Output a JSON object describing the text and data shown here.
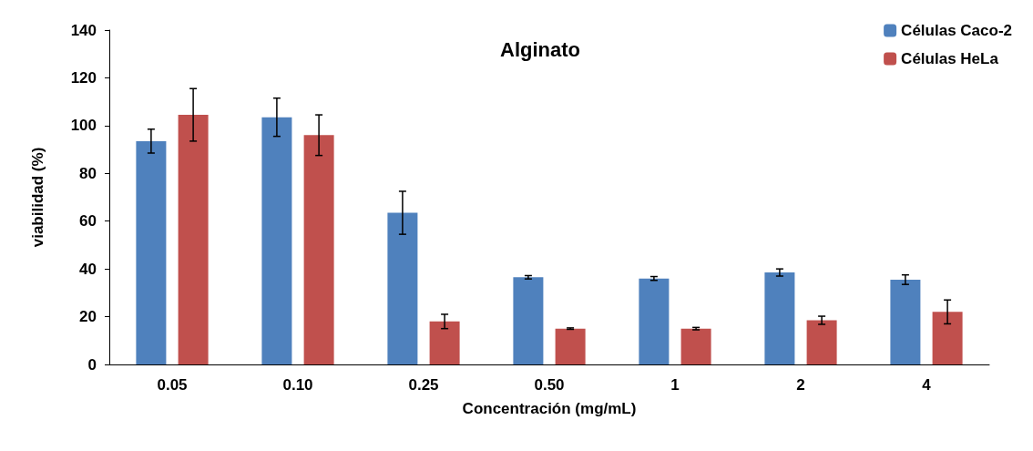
{
  "chart_data": {
    "type": "bar",
    "title": "Alginato",
    "xlabel": "Concentración (mg/mL)",
    "ylabel": "viabilidad (%)",
    "categories": [
      "0.05",
      "0.10",
      "0.25",
      "0.50",
      "1",
      "2",
      "4"
    ],
    "series": [
      {
        "name": "Células Caco-2",
        "color": "#4f81bd",
        "values": [
          93.5,
          103.5,
          63.5,
          36.5,
          36,
          38.5,
          35.5
        ],
        "errors": [
          5,
          8,
          9,
          0.7,
          0.8,
          1.5,
          2
        ]
      },
      {
        "name": "Células HeLa",
        "color": "#c0504d",
        "values": [
          104.5,
          96,
          18,
          15,
          15,
          18.5,
          22
        ],
        "errors": [
          11,
          8.5,
          3,
          0.3,
          0.5,
          1.7,
          5
        ]
      }
    ],
    "ylim": [
      0,
      140
    ],
    "yticks": [
      0,
      20,
      40,
      60,
      80,
      100,
      120,
      140
    ],
    "grid": false,
    "legend": "top right"
  }
}
